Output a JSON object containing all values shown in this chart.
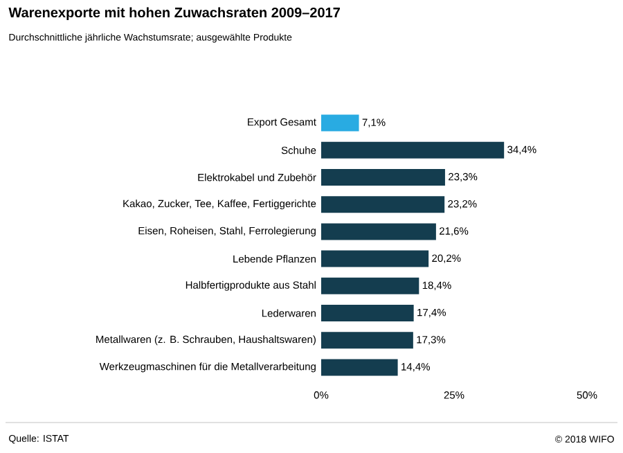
{
  "chart_data": {
    "type": "bar",
    "orientation": "horizontal",
    "title": "Warenexporte mit hohen Zuwachsraten 2009–2017",
    "subtitle": "Durchschnittliche jährliche Wachstumsrate; ausgewählte Produkte",
    "categories": [
      "Export Gesamt",
      "Schuhe",
      "Elektrokabel und Zubehör",
      "Kakao, Zucker, Tee, Kaffee, Fertiggerichte",
      "Eisen, Roheisen, Stahl, Ferrolegierung",
      "Lebende Pflanzen",
      "Halbfertigprodukte aus Stahl",
      "Lederwaren",
      "Metallwaren (z. B. Schrauben, Haushaltswaren)",
      "Werkzeugmaschinen für die Metallverarbeitung"
    ],
    "values": [
      7.1,
      34.4,
      23.3,
      23.2,
      21.6,
      20.2,
      18.4,
      17.4,
      17.3,
      14.4
    ],
    "value_labels": [
      "7,1%",
      "34,4%",
      "23,3%",
      "23,2%",
      "21,6%",
      "20,2%",
      "18,4%",
      "17,4%",
      "17,3%",
      "14,4%"
    ],
    "colors": [
      "#29abe2",
      "#143d4f",
      "#143d4f",
      "#143d4f",
      "#143d4f",
      "#143d4f",
      "#143d4f",
      "#143d4f",
      "#143d4f",
      "#143d4f"
    ],
    "xlim": [
      0,
      50
    ],
    "xticks": [
      {
        "value": 0,
        "label": "0%"
      },
      {
        "value": 25,
        "label": "25%"
      },
      {
        "value": 50,
        "label": "50%"
      }
    ],
    "grid": false,
    "legend": false,
    "annotations": [
      "Quelle: ISTAT",
      "© 2018 WIFO"
    ]
  }
}
